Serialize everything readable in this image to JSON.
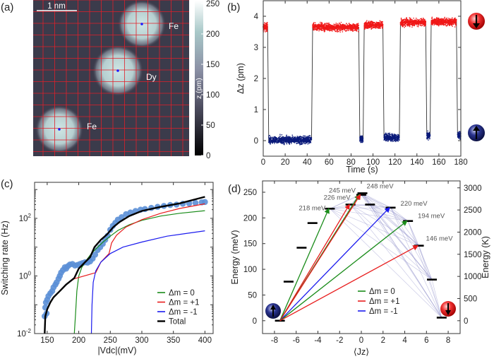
{
  "panels": {
    "a": "(a)",
    "b": "(b)",
    "c": "(c)",
    "d": "(d)"
  },
  "panel_a": {
    "scale_bar": "1 nm",
    "atoms": [
      {
        "label": "Fe"
      },
      {
        "label": "Dy"
      },
      {
        "label": "Fe"
      }
    ],
    "colorbar": {
      "label": "z (pm)",
      "ticks": [
        "0",
        "50",
        "100",
        "150",
        "200",
        "250"
      ],
      "range": [
        0,
        250
      ]
    },
    "colors": {
      "grid": "#e0202a",
      "marker": "#1a1aff",
      "bg": "#3b3b4b"
    }
  },
  "chart_data": [
    {
      "id": "b",
      "type": "scatter",
      "xlabel": "Time (s)",
      "ylabel": "Δz (pm)",
      "xlim": [
        0,
        180
      ],
      "ylim": [
        -0.5,
        4.5
      ],
      "xticks": [
        "0",
        "20",
        "40",
        "60",
        "80",
        "100",
        "120",
        "140",
        "160",
        "180"
      ],
      "yticks": [
        "0",
        "1",
        "2",
        "3",
        "4"
      ],
      "segments": [
        {
          "state": "down",
          "t": [
            0,
            4
          ],
          "level": 3.65
        },
        {
          "state": "up",
          "t": [
            5,
            44
          ],
          "level": 0.02
        },
        {
          "state": "down",
          "t": [
            45,
            87
          ],
          "level": 3.65
        },
        {
          "state": "up",
          "t": [
            88,
            91
          ],
          "level": 0.05
        },
        {
          "state": "down",
          "t": [
            92,
            109
          ],
          "level": 3.72
        },
        {
          "state": "up",
          "t": [
            110,
            124
          ],
          "level": 0.1
        },
        {
          "state": "down",
          "t": [
            125,
            148
          ],
          "level": 3.8
        },
        {
          "state": "up",
          "t": [
            149,
            152
          ],
          "level": 0.18
        },
        {
          "state": "down",
          "t": [
            153,
            176
          ],
          "level": 3.82
        },
        {
          "state": "up",
          "t": [
            177,
            180
          ],
          "level": 0.18
        }
      ],
      "noise_sd": 0.08,
      "colors": {
        "down": "#f01818",
        "up": "#0a1a7a",
        "trace": "#333333"
      }
    },
    {
      "id": "c",
      "type": "line",
      "xlabel": "|Vdc|(mV)",
      "ylabel": "Switching rate (Hz)",
      "xlim": [
        130,
        413
      ],
      "ylim_log10": [
        -2,
        3.25
      ],
      "xticks": [
        "150",
        "200",
        "250",
        "300",
        "350",
        "400"
      ],
      "yticks": [
        "10-2",
        "100",
        "102"
      ],
      "scatter": [
        [
          146,
          0.04
        ],
        [
          147,
          0.08
        ],
        [
          148,
          0.12
        ],
        [
          149,
          0.05
        ],
        [
          150,
          0.15
        ],
        [
          152,
          0.2
        ],
        [
          155,
          0.25
        ],
        [
          158,
          0.3
        ],
        [
          160,
          0.4
        ],
        [
          163,
          0.5
        ],
        [
          165,
          0.6
        ],
        [
          168,
          0.8
        ],
        [
          170,
          1.0
        ],
        [
          172,
          1.3
        ],
        [
          175,
          1.6
        ],
        [
          178,
          2.0
        ],
        [
          180,
          1.8
        ],
        [
          183,
          2.2
        ],
        [
          186,
          2.5
        ],
        [
          190,
          2.6
        ],
        [
          194,
          2.3
        ],
        [
          198,
          2.4
        ],
        [
          202,
          2.6
        ],
        [
          206,
          2.8
        ],
        [
          210,
          3.0
        ],
        [
          214,
          2.9
        ],
        [
          218,
          3.2
        ],
        [
          222,
          4.0
        ],
        [
          226,
          5.5
        ],
        [
          230,
          8
        ],
        [
          234,
          10
        ],
        [
          238,
          13
        ],
        [
          242,
          18
        ],
        [
          246,
          25
        ],
        [
          250,
          40
        ],
        [
          254,
          55
        ],
        [
          258,
          70
        ],
        [
          262,
          90
        ],
        [
          268,
          110
        ],
        [
          275,
          140
        ],
        [
          282,
          160
        ],
        [
          290,
          180
        ],
        [
          298,
          200
        ],
        [
          305,
          210
        ],
        [
          315,
          230
        ],
        [
          325,
          250
        ],
        [
          335,
          270
        ],
        [
          345,
          290
        ],
        [
          355,
          300
        ],
        [
          365,
          320
        ],
        [
          375,
          330
        ],
        [
          385,
          345
        ],
        [
          395,
          360
        ],
        [
          400,
          370
        ]
      ],
      "series": [
        {
          "name": "Δm = 0",
          "color": "#1a8c1a",
          "points": [
            [
              193,
              0.01
            ],
            [
              195,
              0.05
            ],
            [
              197,
              0.3
            ],
            [
              200,
              1
            ],
            [
              205,
              2
            ],
            [
              212,
              3.5
            ],
            [
              220,
              6
            ],
            [
              230,
              10
            ],
            [
              240,
              16
            ],
            [
              250,
              24
            ],
            [
              262,
              38
            ],
            [
              280,
              60
            ],
            [
              300,
              85
            ],
            [
              330,
              120
            ],
            [
              360,
              150
            ],
            [
              400,
              185
            ]
          ]
        },
        {
          "name": "Δm = +1",
          "color": "#e81c1c",
          "points": [
            [
              146,
              0.01
            ],
            [
              147,
              0.04
            ],
            [
              150,
              0.07
            ],
            [
              155,
              0.12
            ],
            [
              160,
              0.18
            ],
            [
              170,
              0.3
            ],
            [
              180,
              0.5
            ],
            [
              193,
              0.8
            ],
            [
              227,
              1.3
            ],
            [
              235,
              3
            ],
            [
              248,
              6
            ],
            [
              252,
              14
            ],
            [
              260,
              26
            ],
            [
              275,
              50
            ],
            [
              300,
              90
            ],
            [
              330,
              150
            ],
            [
              360,
              220
            ],
            [
              400,
              320
            ]
          ]
        },
        {
          "name": "Δm = -1",
          "color": "#1a1aee",
          "points": [
            [
              220,
              0.01
            ],
            [
              221,
              0.1
            ],
            [
              223,
              0.6
            ],
            [
              227,
              1.5
            ],
            [
              235,
              3
            ],
            [
              250,
              6
            ],
            [
              270,
              10
            ],
            [
              300,
              15
            ],
            [
              340,
              24
            ],
            [
              400,
              37
            ]
          ]
        },
        {
          "name": "Total",
          "color": "#000000",
          "points": [
            [
              146,
              0.01
            ],
            [
              147,
              0.04
            ],
            [
              150,
              0.07
            ],
            [
              155,
              0.12
            ],
            [
              160,
              0.18
            ],
            [
              170,
              0.3
            ],
            [
              180,
              0.5
            ],
            [
              193,
              0.85
            ],
            [
              200,
              1.8
            ],
            [
              210,
              3
            ],
            [
              218,
              4.5
            ],
            [
              225,
              10
            ],
            [
              235,
              18
            ],
            [
              245,
              28
            ],
            [
              255,
              50
            ],
            [
              265,
              75
            ],
            [
              280,
              120
            ],
            [
              300,
              180
            ],
            [
              330,
              250
            ],
            [
              360,
              330
            ],
            [
              400,
              560
            ]
          ]
        }
      ],
      "legend": [
        "Δm = 0",
        "Δm = +1",
        "Δm = -1",
        "Total"
      ],
      "legend_position": "bottom-right",
      "scatter_color": "#5b8fd6"
    },
    {
      "id": "d",
      "type": "scatter",
      "xlabel": "⟨Jz⟩",
      "ylabel": "Energy (meV)",
      "y2label": "Energy (K)",
      "xlim": [
        -9.1,
        9.1
      ],
      "ylim": [
        -25,
        272
      ],
      "y2lim_K": [
        -290,
        3156
      ],
      "xticks": [
        "-8",
        "-6",
        "-4",
        "-2",
        "0",
        "2",
        "4",
        "6",
        "8"
      ],
      "yticks": [
        "0",
        "50",
        "100",
        "150",
        "200",
        "250"
      ],
      "y2ticks": [
        "0",
        "500",
        "1000",
        "1500",
        "2000",
        "2500",
        "3000"
      ],
      "levels": [
        [
          -7.5,
          0
        ],
        [
          -6.7,
          76
        ],
        [
          -5.5,
          142
        ],
        [
          -4.5,
          190
        ],
        [
          -2.9,
          218
        ],
        [
          -1.0,
          226
        ],
        [
          0.0,
          245
        ],
        [
          0.1,
          248
        ],
        [
          0.8,
          226
        ],
        [
          2.7,
          220
        ],
        [
          4.3,
          194
        ],
        [
          5.3,
          146
        ],
        [
          6.5,
          80
        ],
        [
          7.4,
          6
        ]
      ],
      "level_labels": [
        {
          "jz": -2.9,
          "e": 218,
          "text": "218 meV"
        },
        {
          "jz": -1.0,
          "e": 226,
          "text": "226 meV"
        },
        {
          "jz": 0.0,
          "e": 245,
          "text": "245 meV"
        },
        {
          "jz": 0.1,
          "e": 248,
          "text": "248 meV"
        },
        {
          "jz": 2.7,
          "e": 220,
          "text": "220 meV"
        },
        {
          "jz": 4.3,
          "e": 194,
          "text": "194 meV"
        },
        {
          "jz": 5.3,
          "e": 146,
          "text": "146 meV"
        }
      ],
      "transitions": [
        {
          "to": [
            -3.0,
            218
          ],
          "type": "Δm = 0"
        },
        {
          "to": [
            -1.1,
            226
          ],
          "type": "Δm = +1"
        },
        {
          "to": [
            -0.2,
            245
          ],
          "type": "Δm = 0"
        },
        {
          "to": [
            -0.1,
            245
          ],
          "type": "Δm = +1"
        },
        {
          "to": [
            2.6,
            220
          ],
          "type": "Δm = -1"
        },
        {
          "to": [
            4.2,
            194
          ],
          "type": "Δm = 0"
        },
        {
          "to": [
            5.2,
            146
          ],
          "type": "Δm = +1"
        }
      ],
      "legend": [
        "Δm = 0",
        "Δm = +1",
        "Δm = -1"
      ],
      "colors": {
        "Δm = 0": "#1a8c1a",
        "Δm = +1": "#e81c1c",
        "Δm = -1": "#1a1aee",
        "relax": "#8c8cc8"
      }
    }
  ]
}
